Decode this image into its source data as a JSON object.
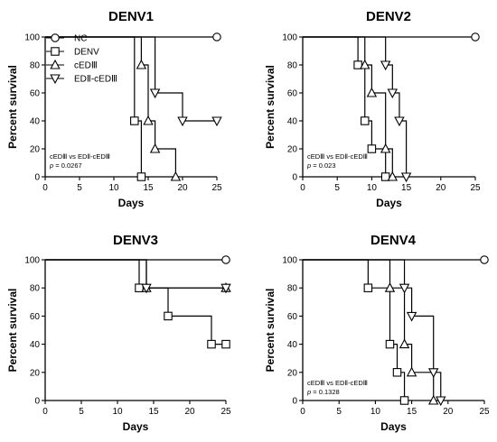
{
  "chart_data": [
    {
      "type": "line",
      "step": true,
      "title": "DENV1",
      "xlabel": "Days",
      "ylabel": "Percent survival",
      "xlim": [
        0,
        25
      ],
      "ylim": [
        0,
        100
      ],
      "xticks": [
        0,
        5,
        10,
        15,
        20,
        25
      ],
      "yticks": [
        0,
        20,
        40,
        60,
        80,
        100
      ],
      "legend": {
        "placement": "top-left",
        "entries": [
          {
            "label": "NC",
            "marker": "circle"
          },
          {
            "label": "DENV",
            "marker": "square"
          },
          {
            "label": "cEDⅢ",
            "marker": "triangle-up"
          },
          {
            "label": "EDⅡ-cEDⅢ",
            "marker": "triangle-down"
          }
        ]
      },
      "annotation": {
        "line1": "cEDⅢ vs  EDⅡ-cEDⅢ",
        "p_label": "p",
        "p_value": " = 0.0267"
      },
      "series": [
        {
          "name": "NC",
          "marker": "circle",
          "steps": [
            [
              0,
              100
            ],
            [
              25,
              100
            ]
          ],
          "markers": [
            [
              25,
              100
            ]
          ]
        },
        {
          "name": "DENV",
          "marker": "square",
          "steps": [
            [
              0,
              100
            ],
            [
              13,
              100
            ],
            [
              13,
              40
            ],
            [
              14,
              40
            ],
            [
              14,
              0
            ]
          ],
          "markers": [
            [
              13,
              40
            ],
            [
              14,
              0
            ]
          ]
        },
        {
          "name": "cEDⅢ",
          "marker": "triangle-up",
          "steps": [
            [
              0,
              100
            ],
            [
              14,
              100
            ],
            [
              14,
              80
            ],
            [
              15,
              80
            ],
            [
              15,
              40
            ],
            [
              16,
              40
            ],
            [
              16,
              20
            ],
            [
              19,
              20
            ],
            [
              19,
              0
            ]
          ],
          "markers": [
            [
              14,
              80
            ],
            [
              15,
              40
            ],
            [
              16,
              20
            ],
            [
              19,
              0
            ]
          ]
        },
        {
          "name": "EDⅡ-cEDⅢ",
          "marker": "triangle-down",
          "steps": [
            [
              0,
              100
            ],
            [
              16,
              100
            ],
            [
              16,
              60
            ],
            [
              20,
              60
            ],
            [
              20,
              40
            ],
            [
              25,
              40
            ]
          ],
          "markers": [
            [
              16,
              60
            ],
            [
              20,
              40
            ],
            [
              25,
              40
            ]
          ]
        }
      ]
    },
    {
      "type": "line",
      "step": true,
      "title": "DENV2",
      "xlabel": "Days",
      "ylabel": "Percent survival",
      "xlim": [
        0,
        25
      ],
      "ylim": [
        0,
        100
      ],
      "xticks": [
        0,
        5,
        10,
        15,
        20,
        25
      ],
      "yticks": [
        0,
        20,
        40,
        60,
        80,
        100
      ],
      "annotation": {
        "line1": "cEDⅢ vs  EDⅡ-cEDⅢ",
        "p_label": "p",
        "p_value": " = 0.023"
      },
      "series": [
        {
          "name": "NC",
          "marker": "circle",
          "steps": [
            [
              0,
              100
            ],
            [
              25,
              100
            ]
          ],
          "markers": [
            [
              25,
              100
            ]
          ]
        },
        {
          "name": "DENV",
          "marker": "square",
          "steps": [
            [
              0,
              100
            ],
            [
              8,
              100
            ],
            [
              8,
              80
            ],
            [
              9,
              80
            ],
            [
              9,
              40
            ],
            [
              10,
              40
            ],
            [
              10,
              20
            ],
            [
              12,
              20
            ],
            [
              12,
              0
            ]
          ],
          "markers": [
            [
              8,
              80
            ],
            [
              9,
              40
            ],
            [
              10,
              20
            ],
            [
              12,
              0
            ]
          ]
        },
        {
          "name": "cEDⅢ",
          "marker": "triangle-up",
          "steps": [
            [
              0,
              100
            ],
            [
              9,
              100
            ],
            [
              9,
              80
            ],
            [
              10,
              80
            ],
            [
              10,
              60
            ],
            [
              12,
              60
            ],
            [
              12,
              20
            ],
            [
              13,
              20
            ],
            [
              13,
              0
            ]
          ],
          "markers": [
            [
              9,
              80
            ],
            [
              10,
              60
            ],
            [
              12,
              20
            ],
            [
              13,
              0
            ]
          ]
        },
        {
          "name": "EDⅡ-cEDⅢ",
          "marker": "triangle-down",
          "steps": [
            [
              0,
              100
            ],
            [
              12,
              100
            ],
            [
              12,
              80
            ],
            [
              13,
              80
            ],
            [
              13,
              60
            ],
            [
              14,
              60
            ],
            [
              14,
              40
            ],
            [
              15,
              40
            ],
            [
              15,
              0
            ]
          ],
          "markers": [
            [
              12,
              80
            ],
            [
              13,
              60
            ],
            [
              14,
              40
            ],
            [
              15,
              0
            ]
          ]
        }
      ]
    },
    {
      "type": "line",
      "step": true,
      "title": "DENV3",
      "xlabel": "Days",
      "ylabel": "Percent survival",
      "xlim": [
        0,
        25
      ],
      "ylim": [
        0,
        100
      ],
      "xticks": [
        0,
        5,
        10,
        15,
        20,
        25
      ],
      "yticks": [
        0,
        20,
        40,
        60,
        80,
        100
      ],
      "series": [
        {
          "name": "NC",
          "marker": "circle",
          "steps": [
            [
              0,
              100
            ],
            [
              25,
              100
            ]
          ],
          "markers": [
            [
              25,
              100
            ]
          ]
        },
        {
          "name": "DENV",
          "marker": "square",
          "steps": [
            [
              0,
              100
            ],
            [
              13,
              100
            ],
            [
              13,
              80
            ],
            [
              17,
              80
            ],
            [
              17,
              60
            ],
            [
              23,
              60
            ],
            [
              23,
              40
            ],
            [
              25,
              40
            ]
          ],
          "markers": [
            [
              13,
              80
            ],
            [
              17,
              60
            ],
            [
              23,
              40
            ],
            [
              25,
              40
            ]
          ]
        },
        {
          "name": "cEDⅢ",
          "marker": "triangle-up",
          "steps": [
            [
              0,
              100
            ],
            [
              14,
              100
            ],
            [
              14,
              80
            ],
            [
              25,
              80
            ]
          ],
          "markers": [
            [
              14,
              80
            ],
            [
              25,
              80
            ]
          ]
        },
        {
          "name": "EDⅡ-cEDⅢ",
          "marker": "triangle-down",
          "steps": [
            [
              0,
              100
            ],
            [
              14,
              100
            ],
            [
              14,
              80
            ],
            [
              25,
              80
            ]
          ],
          "markers": [
            [
              14,
              80
            ],
            [
              25,
              80
            ]
          ]
        }
      ]
    },
    {
      "type": "line",
      "step": true,
      "title": "DENV4",
      "xlabel": "Days",
      "ylabel": "Percent survival",
      "xlim": [
        0,
        25
      ],
      "ylim": [
        0,
        100
      ],
      "xticks": [
        0,
        5,
        10,
        15,
        20,
        25
      ],
      "yticks": [
        0,
        20,
        40,
        60,
        80,
        100
      ],
      "annotation": {
        "line1": "cEDⅢ vs EDⅡ-cEDⅢ",
        "p_label": "p",
        "p_value": " = 0.1328"
      },
      "series": [
        {
          "name": "NC",
          "marker": "circle",
          "steps": [
            [
              0,
              100
            ],
            [
              25,
              100
            ]
          ],
          "markers": [
            [
              25,
              100
            ]
          ]
        },
        {
          "name": "DENV",
          "marker": "square",
          "steps": [
            [
              0,
              100
            ],
            [
              9,
              100
            ],
            [
              9,
              80
            ],
            [
              12,
              80
            ],
            [
              12,
              40
            ],
            [
              13,
              40
            ],
            [
              13,
              20
            ],
            [
              14,
              20
            ],
            [
              14,
              0
            ]
          ],
          "markers": [
            [
              9,
              80
            ],
            [
              12,
              40
            ],
            [
              13,
              20
            ],
            [
              14,
              0
            ]
          ]
        },
        {
          "name": "cEDⅢ",
          "marker": "triangle-up",
          "steps": [
            [
              0,
              100
            ],
            [
              12,
              100
            ],
            [
              12,
              80
            ],
            [
              14,
              80
            ],
            [
              14,
              40
            ],
            [
              15,
              40
            ],
            [
              15,
              20
            ],
            [
              18,
              20
            ],
            [
              18,
              0
            ]
          ],
          "markers": [
            [
              12,
              80
            ],
            [
              14,
              40
            ],
            [
              15,
              20
            ],
            [
              18,
              0
            ]
          ]
        },
        {
          "name": "EDⅡ-cEDⅢ",
          "marker": "triangle-down",
          "steps": [
            [
              0,
              100
            ],
            [
              14,
              100
            ],
            [
              14,
              80
            ],
            [
              15,
              80
            ],
            [
              15,
              60
            ],
            [
              18,
              60
            ],
            [
              18,
              20
            ],
            [
              19,
              20
            ],
            [
              19,
              0
            ]
          ],
          "markers": [
            [
              14,
              80
            ],
            [
              15,
              60
            ],
            [
              18,
              20
            ],
            [
              19,
              0
            ]
          ]
        }
      ]
    }
  ]
}
